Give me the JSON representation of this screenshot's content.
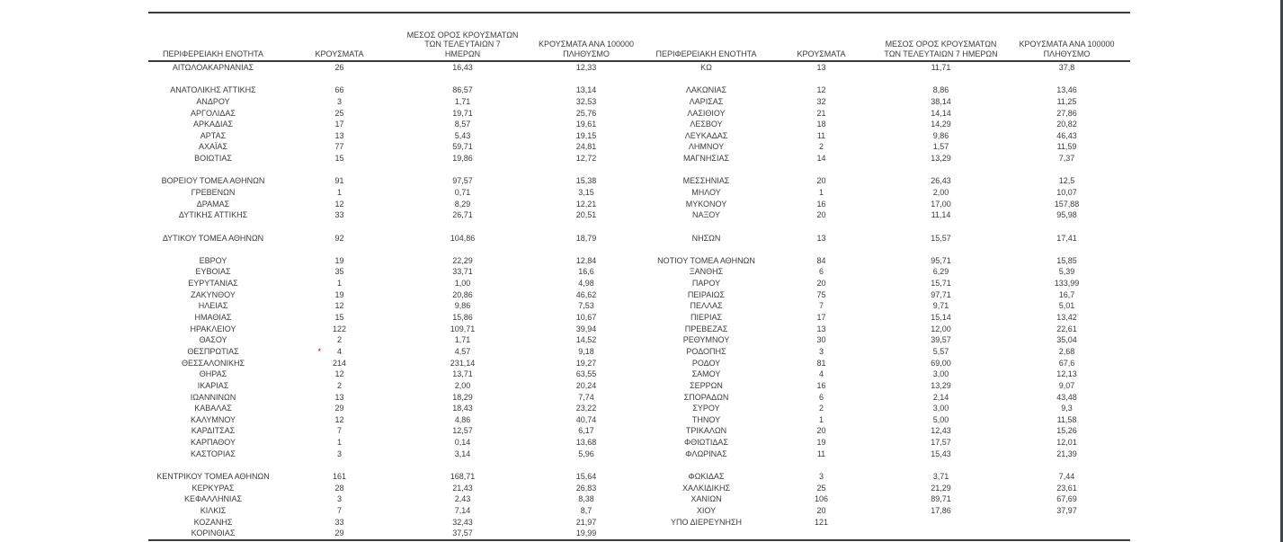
{
  "table": {
    "columns": [
      "ΠΕΡΙΦΕΡΕΙΑΚΗ ΕΝΟΤΗΤΑ",
      "ΚΡΟΥΣΜΑΤΑ",
      "ΜΕΣΟΣ ΟΡΟΣ ΚΡΟΥΣΜΑΤΩΝ ΤΩΝ ΤΕΛΕΥΤΑΙΩΝ 7 ΗΜΕΡΩΝ",
      "ΚΡΟΥΣΜΑΤΑ ΑΝΑ 100000 ΠΛΗΘΥΣΜΟ"
    ],
    "flag": {
      "symbol": "*",
      "color": "#c00000",
      "flagged_region": "ΘΕΣΠΡΩΤΙΑΣ"
    },
    "rule_color": "#3a3a3a",
    "text_color": "#3b3b3b",
    "row_slots": [
      {
        "left": [
          "ΑΙΤΩΛΟΑΚΑΡΝΑΝΙΑΣ",
          "26",
          "16,43",
          "12,33"
        ],
        "right": [
          "ΚΩ",
          "13",
          "11,71",
          "37,8"
        ]
      },
      {
        "left": null,
        "right": null
      },
      {
        "left": [
          "ΑΝΑΤΟΛΙΚΗΣ ΑΤΤΙΚΗΣ",
          "66",
          "86,57",
          "13,14"
        ],
        "right": [
          "ΛΑΚΩΝΙΑΣ",
          "12",
          "8,86",
          "13,46"
        ]
      },
      {
        "left": [
          "ΑΝΔΡΟΥ",
          "3",
          "1,71",
          "32,53"
        ],
        "right": [
          "ΛΑΡΙΣΑΣ",
          "32",
          "38,14",
          "11,25"
        ]
      },
      {
        "left": [
          "ΑΡΓΟΛΙΔΑΣ",
          "25",
          "19,71",
          "25,76"
        ],
        "right": [
          "ΛΑΣΙΘΙΟΥ",
          "21",
          "14,14",
          "27,86"
        ]
      },
      {
        "left": [
          "ΑΡΚΑΔΙΑΣ",
          "17",
          "8,57",
          "19,61"
        ],
        "right": [
          "ΛΕΣΒΟΥ",
          "18",
          "14,29",
          "20,82"
        ]
      },
      {
        "left": [
          "ΑΡΤΑΣ",
          "13",
          "5,43",
          "19,15"
        ],
        "right": [
          "ΛΕΥΚΑΔΑΣ",
          "11",
          "9,86",
          "46,43"
        ]
      },
      {
        "left": [
          "ΑΧΑΪΑΣ",
          "77",
          "59,71",
          "24,81"
        ],
        "right": [
          "ΛΗΜΝΟΥ",
          "2",
          "1,57",
          "11,59"
        ]
      },
      {
        "left": [
          "ΒΟΙΩΤΙΑΣ",
          "15",
          "19,86",
          "12,72"
        ],
        "right": [
          "ΜΑΓΝΗΣΙΑΣ",
          "14",
          "13,29",
          "7,37"
        ]
      },
      {
        "left": null,
        "right": null
      },
      {
        "left": [
          "ΒΟΡΕΙΟΥ ΤΟΜΕΑ ΑΘΗΝΩΝ",
          "91",
          "97,57",
          "15,38"
        ],
        "right": [
          "ΜΕΣΣΗΝΙΑΣ",
          "20",
          "26,43",
          "12,5"
        ]
      },
      {
        "left": [
          "ΓΡΕΒΕΝΩΝ",
          "1",
          "0,71",
          "3,15"
        ],
        "right": [
          "ΜΗΛΟΥ",
          "1",
          "2,00",
          "10,07"
        ]
      },
      {
        "left": [
          "ΔΡΑΜΑΣ",
          "12",
          "8,29",
          "12,21"
        ],
        "right": [
          "ΜΥΚΟΝΟΥ",
          "16",
          "17,00",
          "157,88"
        ]
      },
      {
        "left": [
          "ΔΥΤΙΚΗΣ ΑΤΤΙΚΗΣ",
          "33",
          "26,71",
          "20,51"
        ],
        "right": [
          "ΝΑΞΟΥ",
          "20",
          "11,14",
          "95,98"
        ]
      },
      {
        "left": null,
        "right": null
      },
      {
        "left": [
          "ΔΥΤΙΚΟΥ ΤΟΜΕΑ ΑΘΗΝΩΝ",
          "92",
          "104,86",
          "18,79"
        ],
        "right": [
          "ΝΗΣΩΝ",
          "13",
          "15,57",
          "17,41"
        ]
      },
      {
        "left": null,
        "right": null
      },
      {
        "left": [
          "ΕΒΡΟΥ",
          "19",
          "22,29",
          "12,84"
        ],
        "right": [
          "ΝΟΤΙΟΥ ΤΟΜΕΑ ΑΘΗΝΩΝ",
          "84",
          "95,71",
          "15,85"
        ]
      },
      {
        "left": [
          "ΕΥΒΟΙΑΣ",
          "35",
          "33,71",
          "16,6"
        ],
        "right": [
          "ΞΑΝΘΗΣ",
          "6",
          "6,29",
          "5,39"
        ]
      },
      {
        "left": [
          "ΕΥΡΥΤΑΝΙΑΣ",
          "1",
          "1,00",
          "4,98"
        ],
        "right": [
          "ΠΑΡΟΥ",
          "20",
          "15,71",
          "133,99"
        ]
      },
      {
        "left": [
          "ΖΑΚΥΝΘΟΥ",
          "19",
          "20,86",
          "46,62"
        ],
        "right": [
          "ΠΕΙΡΑΙΩΣ",
          "75",
          "97,71",
          "16,7"
        ]
      },
      {
        "left": [
          "ΗΛΕΙΑΣ",
          "12",
          "9,86",
          "7,53"
        ],
        "right": [
          "ΠΕΛΛΑΣ",
          "7",
          "9,71",
          "5,01"
        ]
      },
      {
        "left": [
          "ΗΜΑΘΙΑΣ",
          "15",
          "15,86",
          "10,67"
        ],
        "right": [
          "ΠΙΕΡΙΑΣ",
          "17",
          "15,14",
          "13,42"
        ]
      },
      {
        "left": [
          "ΗΡΑΚΛΕΙΟΥ",
          "122",
          "109,71",
          "39,94"
        ],
        "right": [
          "ΠΡΕΒΕΖΑΣ",
          "13",
          "12,00",
          "22,61"
        ]
      },
      {
        "left": [
          "ΘΑΣΟΥ",
          "2",
          "1,71",
          "14,52"
        ],
        "right": [
          "ΡΕΘΥΜΝΟΥ",
          "30",
          "39,57",
          "35,04"
        ]
      },
      {
        "left": [
          "ΘΕΣΠΡΩΤΙΑΣ",
          "4",
          "4,57",
          "9,18"
        ],
        "right": [
          "ΡΟΔΟΠΗΣ",
          "3",
          "5,57",
          "2,68"
        ],
        "left_flag": true
      },
      {
        "left": [
          "ΘΕΣΣΑΛΟΝΙΚΗΣ",
          "214",
          "231,14",
          "19,27"
        ],
        "right": [
          "ΡΟΔΟΥ",
          "81",
          "69,00",
          "67,6"
        ]
      },
      {
        "left": [
          "ΘΗΡΑΣ",
          "12",
          "13,71",
          "63,55"
        ],
        "right": [
          "ΣΑΜΟΥ",
          "4",
          "3,00",
          "12,13"
        ]
      },
      {
        "left": [
          "ΙΚΑΡΙΑΣ",
          "2",
          "2,00",
          "20,24"
        ],
        "right": [
          "ΣΕΡΡΩΝ",
          "16",
          "13,29",
          "9,07"
        ]
      },
      {
        "left": [
          "ΙΩΑΝΝΙΝΩΝ",
          "13",
          "18,29",
          "7,74"
        ],
        "right": [
          "ΣΠΟΡΑΔΩΝ",
          "6",
          "2,14",
          "43,48"
        ]
      },
      {
        "left": [
          "ΚΑΒΑΛΑΣ",
          "29",
          "18,43",
          "23,22"
        ],
        "right": [
          "ΣΥΡΟΥ",
          "2",
          "3,00",
          "9,3"
        ]
      },
      {
        "left": [
          "ΚΑΛΥΜΝΟΥ",
          "12",
          "4,86",
          "40,74"
        ],
        "right": [
          "ΤΗΝΟΥ",
          "1",
          "5,00",
          "11,58"
        ]
      },
      {
        "left": [
          "ΚΑΡΔΙΤΣΑΣ",
          "7",
          "12,57",
          "6,17"
        ],
        "right": [
          "ΤΡΙΚΑΛΩΝ",
          "20",
          "12,43",
          "15,26"
        ]
      },
      {
        "left": [
          "ΚΑΡΠΑΘΟΥ",
          "1",
          "0,14",
          "13,68"
        ],
        "right": [
          "ΦΘΙΩΤΙΔΑΣ",
          "19",
          "17,57",
          "12,01"
        ]
      },
      {
        "left": [
          "ΚΑΣΤΟΡΙΑΣ",
          "3",
          "3,14",
          "5,96"
        ],
        "right": [
          "ΦΛΩΡΙΝΑΣ",
          "11",
          "15,43",
          "21,39"
        ]
      },
      {
        "left": null,
        "right": null
      },
      {
        "left": [
          "ΚΕΝΤΡΙΚΟΥ ΤΟΜΕΑ ΑΘΗΝΩΝ",
          "161",
          "168,71",
          "15,64"
        ],
        "right": [
          "ΦΩΚΙΔΑΣ",
          "3",
          "3,71",
          "7,44"
        ]
      },
      {
        "left": [
          "ΚΕΡΚΥΡΑΣ",
          "28",
          "21,43",
          "26,83"
        ],
        "right": [
          "ΧΑΛΚΙΔΙΚΗΣ",
          "25",
          "21,29",
          "23,61"
        ]
      },
      {
        "left": [
          "ΚΕΦΑΛΛΗΝΙΑΣ",
          "3",
          "2,43",
          "8,38"
        ],
        "right": [
          "ΧΑΝΙΩΝ",
          "106",
          "89,71",
          "67,69"
        ]
      },
      {
        "left": [
          "ΚΙΛΚΙΣ",
          "7",
          "7,14",
          "8,7"
        ],
        "right": [
          "ΧΙΟΥ",
          "20",
          "17,86",
          "37,97"
        ]
      },
      {
        "left": [
          "ΚΟΖΑΝΗΣ",
          "33",
          "32,43",
          "21,97"
        ],
        "right": [
          "ΥΠΟ ΔΙΕΡΕΥΝΗΣΗ",
          "121",
          "",
          ""
        ]
      },
      {
        "left": [
          "ΚΟΡΙΝΘΙΑΣ",
          "29",
          "37,57",
          "19,99"
        ],
        "right": null
      }
    ]
  }
}
